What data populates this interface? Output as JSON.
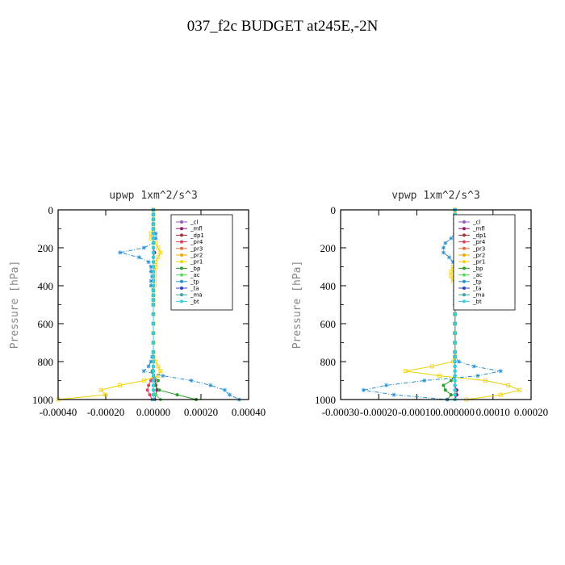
{
  "figure": {
    "title": "037_f2c  BUDGET at245E,-2N"
  },
  "colors": {
    "_cl": "#9b59b6",
    "_mfl": "#8e1b6b",
    "_dp1": "#a0303a",
    "_pr4": "#e0405a",
    "_pr3": "#e86a3a",
    "_pr2": "#f0a800",
    "_pr1": "#f0d000",
    "_bp": "#2e9e2e",
    "_ac": "#5ad85a",
    "_tp": "#2a8fd0",
    "_ta": "#3040c0",
    "_ma": "#3aa0a0",
    "_bt": "#30d0e0"
  },
  "chart_data": [
    {
      "type": "line",
      "title": "upwp   1xm^2/s^3",
      "ylabel": "Pressure [hPa]",
      "xlim": [
        -0.0004,
        0.0004
      ],
      "ylim": [
        1000,
        0
      ],
      "xticks": [
        "-0.00040",
        "-0.00020",
        "0.00000",
        "0.00020",
        "0.00040"
      ],
      "yticks": [
        "0",
        "200",
        "400",
        "600",
        "800",
        "1000"
      ],
      "legend_position": "top-right",
      "y": [
        0,
        25,
        50,
        75,
        100,
        125,
        150,
        175,
        200,
        225,
        250,
        275,
        300,
        325,
        350,
        375,
        400,
        425,
        450,
        475,
        500,
        550,
        600,
        650,
        700,
        750,
        775,
        800,
        825,
        850,
        875,
        900,
        925,
        950,
        975,
        1000
      ],
      "series": [
        {
          "name": "_cl",
          "values": [
            0,
            0,
            0,
            0,
            0,
            0,
            0,
            0,
            0,
            0,
            0,
            0,
            0,
            0,
            0,
            0,
            0,
            0,
            0,
            0,
            0,
            0,
            0,
            0,
            0,
            0,
            0,
            0,
            0,
            0,
            0,
            0,
            0,
            0,
            0,
            0
          ]
        },
        {
          "name": "_mfl",
          "values": [
            0,
            0,
            0,
            0,
            0,
            0,
            0,
            0,
            0,
            5e-06,
            0,
            0,
            0,
            0,
            0,
            0,
            0,
            0,
            0,
            0,
            0,
            0,
            0,
            0,
            0,
            0,
            0,
            0,
            0,
            0,
            0,
            5e-06,
            1e-05,
            1.5e-05,
            1e-05,
            5e-06
          ]
        },
        {
          "name": "_dp1",
          "values": [
            0,
            0,
            0,
            0,
            0,
            0,
            0,
            0,
            0,
            0,
            0,
            0,
            0,
            0,
            0,
            0,
            0,
            0,
            0,
            0,
            0,
            0,
            0,
            0,
            0,
            0,
            0,
            0,
            0,
            0,
            0,
            0,
            0,
            0,
            0,
            0
          ]
        },
        {
          "name": "_pr4",
          "values": [
            0,
            0,
            0,
            0,
            0,
            0,
            0,
            0,
            0,
            0,
            0,
            0,
            0,
            0,
            0,
            0,
            0,
            0,
            0,
            0,
            0,
            0,
            0,
            0,
            0,
            0,
            0,
            0,
            0,
            0,
            0,
            -1e-05,
            -2e-05,
            -2.5e-05,
            -1.5e-05,
            -5e-06
          ]
        },
        {
          "name": "_pr3",
          "values": [
            0,
            0,
            0,
            0,
            0,
            0,
            0,
            0,
            0,
            0,
            0,
            0,
            0,
            0,
            0,
            0,
            0,
            0,
            0,
            0,
            0,
            0,
            0,
            0,
            0,
            0,
            0,
            0,
            0,
            0,
            0,
            0,
            0,
            0,
            0,
            0
          ]
        },
        {
          "name": "_pr2",
          "values": [
            0,
            0,
            0,
            0,
            0,
            0,
            0,
            0,
            0,
            0,
            0,
            0,
            0,
            0,
            0,
            0,
            0,
            0,
            0,
            0,
            0,
            0,
            0,
            0,
            0,
            0,
            0,
            0,
            0,
            0,
            0,
            0,
            0,
            0,
            0,
            0
          ]
        },
        {
          "name": "_pr1",
          "values": [
            0,
            0,
            0,
            0,
            0,
            -1e-05,
            -1e-05,
            1e-05,
            2e-05,
            3e-05,
            2e-05,
            1e-05,
            1e-05,
            5e-06,
            5e-06,
            5e-06,
            5e-06,
            0,
            0,
            0,
            0,
            0,
            0,
            0,
            0,
            0,
            0,
            1e-05,
            2e-05,
            3e-05,
            2e-05,
            -4e-05,
            -0.00014,
            -0.00022,
            -0.0002,
            -0.0004
          ]
        },
        {
          "name": "_bp",
          "values": [
            0,
            0,
            0,
            0,
            0,
            0,
            0,
            0,
            0,
            0,
            0,
            0,
            0,
            0,
            0,
            0,
            0,
            0,
            0,
            0,
            0,
            0,
            0,
            0,
            0,
            0,
            0,
            0,
            0,
            -5e-06,
            0,
            2e-05,
            5e-06,
            2.5e-05,
            0.0001,
            0.00018
          ]
        },
        {
          "name": "_ac",
          "values": [
            0,
            0,
            0,
            0,
            0,
            0,
            0,
            0,
            0,
            0,
            0,
            0,
            0,
            0,
            0,
            0,
            0,
            0,
            0,
            0,
            0,
            0,
            0,
            0,
            0,
            0,
            0,
            0,
            0,
            0,
            0,
            0,
            0,
            0,
            1e-05,
            3e-05
          ]
        },
        {
          "name": "_tp",
          "values": [
            0,
            0,
            0,
            0,
            0,
            1e-05,
            1e-05,
            0,
            -4e-05,
            -0.00014,
            -6e-05,
            -2e-05,
            -1e-05,
            -1e-05,
            -5e-06,
            -1e-05,
            -1e-05,
            0,
            0,
            0,
            0,
            0,
            0,
            0,
            0,
            0,
            -5e-06,
            -1e-05,
            -2e-05,
            -4e-05,
            4e-05,
            0.00016,
            0.00024,
            0.0003,
            0.00032,
            0.00036
          ]
        },
        {
          "name": "_ta",
          "values": [
            0,
            0,
            0,
            0,
            0,
            0,
            0,
            0,
            0,
            0,
            0,
            0,
            0,
            0,
            0,
            0,
            0,
            0,
            0,
            0,
            0,
            0,
            0,
            0,
            0,
            0,
            0,
            0,
            0,
            0,
            0,
            0,
            0,
            0,
            0,
            0
          ]
        },
        {
          "name": "_ma",
          "values": [
            0,
            0,
            0,
            0,
            0,
            0,
            0,
            0,
            0,
            0,
            0,
            0,
            0,
            0,
            0,
            0,
            0,
            0,
            0,
            0,
            0,
            0,
            0,
            0,
            0,
            0,
            0,
            0,
            0,
            0,
            0,
            0,
            0,
            0,
            0,
            0
          ]
        },
        {
          "name": "_bt",
          "values": [
            0,
            0,
            0,
            0,
            0,
            0,
            0,
            0,
            0,
            0,
            0,
            0,
            0,
            0,
            0,
            0,
            0,
            0,
            0,
            0,
            0,
            0,
            0,
            0,
            0,
            0,
            0,
            0,
            0,
            0,
            0,
            0,
            0,
            0,
            0,
            0
          ]
        }
      ]
    },
    {
      "type": "line",
      "title": "vpwp   1xm^2/s^3",
      "ylabel": "Pressure [hPa]",
      "xlim": [
        -0.0003,
        0.0002
      ],
      "ylim": [
        1000,
        0
      ],
      "xticks": [
        "-0.00030",
        "-0.00020",
        "-0.00010",
        "0.000000",
        "0.00010",
        "0.00020"
      ],
      "yticks": [
        "0",
        "200",
        "400",
        "600",
        "800",
        "1000"
      ],
      "legend_position": "top-right",
      "y": [
        0,
        25,
        50,
        75,
        100,
        125,
        150,
        175,
        200,
        225,
        250,
        275,
        300,
        325,
        350,
        375,
        400,
        425,
        450,
        475,
        500,
        550,
        600,
        650,
        700,
        750,
        775,
        800,
        825,
        850,
        875,
        900,
        925,
        950,
        975,
        1000
      ],
      "series": [
        {
          "name": "_cl",
          "values": [
            0,
            0,
            0,
            0,
            0,
            0,
            0,
            0,
            0,
            0,
            0,
            0,
            0,
            0,
            0,
            0,
            0,
            0,
            0,
            0,
            0,
            0,
            0,
            0,
            0,
            0,
            0,
            0,
            0,
            0,
            0,
            0,
            0,
            0,
            0,
            0
          ]
        },
        {
          "name": "_mfl",
          "values": [
            0,
            0,
            0,
            0,
            0,
            0,
            0,
            0,
            0,
            0,
            0,
            0,
            0,
            0,
            0,
            0,
            0,
            0,
            0,
            0,
            0,
            0,
            0,
            0,
            0,
            0,
            0,
            0,
            0,
            0,
            0,
            0,
            0,
            5e-06,
            5e-06,
            0
          ]
        },
        {
          "name": "_dp1",
          "values": [
            0,
            0,
            0,
            0,
            0,
            0,
            0,
            0,
            0,
            0,
            0,
            0,
            0,
            0,
            0,
            0,
            0,
            0,
            0,
            0,
            0,
            0,
            0,
            0,
            0,
            0,
            0,
            0,
            0,
            0,
            0,
            0,
            0,
            0,
            0,
            0
          ]
        },
        {
          "name": "_pr4",
          "values": [
            0,
            0,
            0,
            0,
            0,
            0,
            0,
            0,
            0,
            0,
            0,
            0,
            0,
            0,
            0,
            0,
            0,
            0,
            0,
            0,
            0,
            0,
            0,
            0,
            0,
            0,
            0,
            0,
            0,
            0,
            0,
            0,
            0,
            0,
            0,
            0
          ]
        },
        {
          "name": "_pr3",
          "values": [
            0,
            0,
            0,
            0,
            0,
            0,
            0,
            0,
            0,
            0,
            0,
            0,
            0,
            0,
            0,
            0,
            0,
            0,
            0,
            0,
            0,
            0,
            0,
            0,
            0,
            0,
            0,
            0,
            0,
            0,
            0,
            0,
            0,
            0,
            0,
            0
          ]
        },
        {
          "name": "_pr2",
          "values": [
            0,
            0,
            0,
            0,
            0,
            0,
            0,
            0,
            0,
            0,
            0,
            0,
            0,
            0,
            0,
            0,
            0,
            0,
            0,
            0,
            0,
            0,
            0,
            0,
            0,
            0,
            0,
            0,
            0,
            0,
            0,
            0,
            0,
            0,
            0,
            0
          ]
        },
        {
          "name": "_pr1",
          "values": [
            0,
            0,
            0,
            0,
            0,
            0,
            5e-06,
            2e-05,
            1.5e-05,
            1e-05,
            2e-05,
            1e-05,
            -5e-06,
            -1e-05,
            -1e-05,
            -5e-06,
            0,
            0,
            0,
            0,
            0,
            0,
            0,
            0,
            0,
            0,
            0,
            -5e-06,
            -6e-05,
            -0.00013,
            -4e-05,
            8e-05,
            0.00014,
            0.00017,
            0.00012,
            3e-05
          ]
        },
        {
          "name": "_bp",
          "values": [
            0,
            0,
            0,
            0,
            0,
            0,
            0,
            0,
            0,
            0,
            0,
            0,
            0,
            0,
            0,
            0,
            0,
            0,
            0,
            0,
            0,
            0,
            0,
            0,
            0,
            0,
            0,
            0,
            0,
            0,
            0,
            -1e-05,
            -3e-05,
            -2.5e-05,
            -1e-05,
            -2e-05
          ]
        },
        {
          "name": "_ac",
          "values": [
            0,
            0,
            0,
            0,
            0,
            0,
            0,
            0,
            0,
            0,
            0,
            0,
            0,
            0,
            0,
            0,
            0,
            0,
            0,
            0,
            0,
            0,
            0,
            0,
            0,
            0,
            0,
            0,
            0,
            0,
            0,
            0,
            0,
            0,
            0,
            0
          ]
        },
        {
          "name": "_tp",
          "values": [
            0,
            0,
            0,
            0,
            0,
            0,
            -1e-05,
            -2.5e-05,
            -3e-05,
            -3e-05,
            -1.5e-05,
            -5e-06,
            0,
            0,
            0,
            0,
            0,
            0,
            0,
            0,
            0,
            0,
            0,
            0,
            0,
            0,
            0,
            1e-05,
            5e-05,
            0.00012,
            6e-05,
            -8e-05,
            -0.00018,
            -0.00024,
            -0.00016,
            -2e-05
          ]
        },
        {
          "name": "_ta",
          "values": [
            0,
            0,
            0,
            0,
            0,
            0,
            0,
            0,
            0,
            0,
            0,
            0,
            0,
            0,
            0,
            0,
            0,
            0,
            0,
            0,
            0,
            0,
            0,
            0,
            0,
            0,
            0,
            0,
            0,
            0,
            0,
            0,
            0,
            0,
            0,
            0
          ]
        },
        {
          "name": "_ma",
          "values": [
            0,
            0,
            0,
            0,
            0,
            0,
            0,
            0,
            0,
            0,
            0,
            0,
            0,
            0,
            0,
            0,
            0,
            0,
            0,
            0,
            0,
            0,
            0,
            0,
            0,
            0,
            0,
            0,
            0,
            0,
            0,
            0,
            0,
            0,
            0,
            0
          ]
        },
        {
          "name": "_bt",
          "values": [
            0,
            0,
            0,
            0,
            0,
            0,
            0,
            0,
            0,
            0,
            0,
            0,
            0,
            0,
            0,
            0,
            0,
            0,
            0,
            0,
            0,
            0,
            0,
            0,
            0,
            0,
            0,
            0,
            0,
            0,
            0,
            0,
            0,
            0,
            0,
            0
          ]
        }
      ]
    }
  ]
}
